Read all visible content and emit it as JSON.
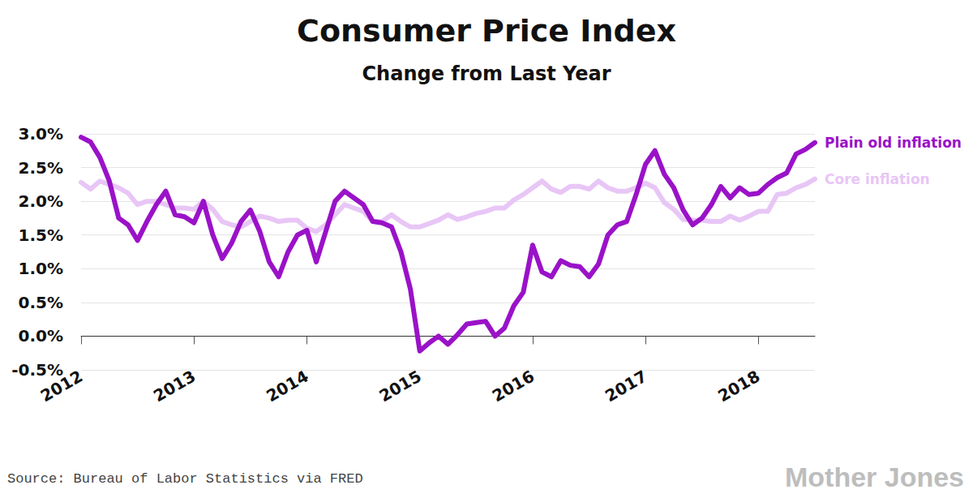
{
  "chart_data": {
    "type": "line",
    "title": "Consumer Price Index",
    "subtitle": "Change from Last Year",
    "source": "Source: Bureau of Labor Statistics via FRED",
    "credit": "Mother Jones",
    "categories": [
      "2012",
      null,
      null,
      null,
      null,
      null,
      null,
      null,
      null,
      null,
      null,
      null,
      "2013",
      null,
      null,
      null,
      null,
      null,
      null,
      null,
      null,
      null,
      null,
      null,
      "2014",
      null,
      null,
      null,
      null,
      null,
      null,
      null,
      null,
      null,
      null,
      null,
      "2015",
      null,
      null,
      null,
      null,
      null,
      null,
      null,
      null,
      null,
      null,
      null,
      "2016",
      null,
      null,
      null,
      null,
      null,
      null,
      null,
      null,
      null,
      null,
      null,
      "2017",
      null,
      null,
      null,
      null,
      null,
      null,
      null,
      null,
      null,
      null,
      null,
      "2018",
      null,
      null,
      null,
      null,
      null,
      null
    ],
    "series": [
      {
        "name": "Plain old inflation",
        "color": "#9a12c8",
        "values": [
          2.95,
          2.88,
          2.65,
          2.3,
          1.75,
          1.65,
          1.42,
          1.7,
          1.95,
          2.15,
          1.8,
          1.77,
          1.68,
          2.0,
          1.5,
          1.15,
          1.38,
          1.7,
          1.87,
          1.55,
          1.1,
          0.88,
          1.25,
          1.5,
          1.57,
          1.1,
          1.55,
          2.0,
          2.15,
          2.05,
          1.95,
          1.7,
          1.68,
          1.62,
          1.25,
          0.7,
          -0.22,
          -0.1,
          0.0,
          -0.12,
          0.02,
          0.18,
          0.2,
          0.22,
          0.0,
          0.12,
          0.45,
          0.65,
          1.35,
          0.95,
          0.88,
          1.12,
          1.05,
          1.03,
          0.88,
          1.07,
          1.5,
          1.65,
          1.7,
          2.1,
          2.55,
          2.75,
          2.4,
          2.2,
          1.87,
          1.65,
          1.75,
          1.95,
          2.22,
          2.05,
          2.2,
          2.1,
          2.12,
          2.25,
          2.35,
          2.42,
          2.7,
          2.77,
          2.87
        ]
      },
      {
        "name": "Core inflation",
        "color": "#e8c6f6",
        "values": [
          2.28,
          2.18,
          2.3,
          2.25,
          2.2,
          2.12,
          1.95,
          2.0,
          2.0,
          1.95,
          1.9,
          1.9,
          1.88,
          2.0,
          1.88,
          1.7,
          1.65,
          1.62,
          1.7,
          1.78,
          1.75,
          1.7,
          1.72,
          1.72,
          1.6,
          1.55,
          1.65,
          1.8,
          1.95,
          1.9,
          1.85,
          1.7,
          1.7,
          1.8,
          1.7,
          1.62,
          1.62,
          1.67,
          1.72,
          1.8,
          1.73,
          1.77,
          1.82,
          1.85,
          1.9,
          1.9,
          2.02,
          2.1,
          2.2,
          2.3,
          2.18,
          2.13,
          2.22,
          2.22,
          2.18,
          2.3,
          2.2,
          2.15,
          2.15,
          2.2,
          2.27,
          2.2,
          1.98,
          1.88,
          1.73,
          1.72,
          1.72,
          1.7,
          1.7,
          1.78,
          1.72,
          1.78,
          1.85,
          1.85,
          2.1,
          2.12,
          2.2,
          2.25,
          2.33
        ]
      }
    ],
    "ylim": [
      -0.5,
      3.0
    ],
    "yticks": [
      {
        "value": -0.5,
        "label": "-0.5%"
      },
      {
        "value": 0.0,
        "label": "0.0%"
      },
      {
        "value": 0.5,
        "label": "0.5%"
      },
      {
        "value": 1.0,
        "label": "1.0%"
      },
      {
        "value": 1.5,
        "label": "1.5%"
      },
      {
        "value": 2.0,
        "label": "2.0%"
      },
      {
        "value": 2.5,
        "label": "2.5%"
      },
      {
        "value": 3.0,
        "label": "3.0%"
      }
    ],
    "grid": true
  }
}
